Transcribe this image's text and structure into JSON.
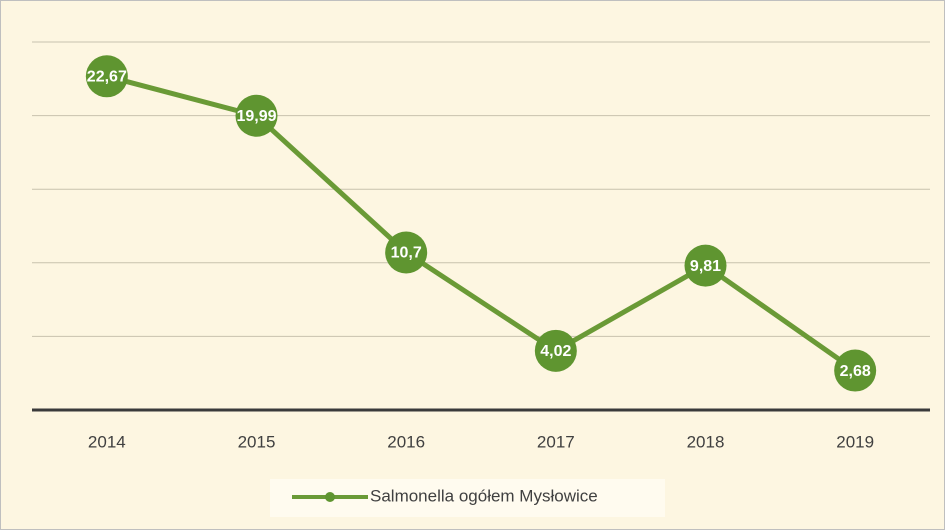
{
  "chart_data": {
    "type": "line",
    "categories": [
      "2014",
      "2015",
      "2016",
      "2017",
      "2018",
      "2019"
    ],
    "series": [
      {
        "name": "Salmonella ogółem Mysłowice",
        "color": "#6a9a36",
        "values": [
          22.67,
          19.99,
          10.7,
          4.02,
          9.81,
          2.68
        ],
        "value_labels": [
          "22,67",
          "19,99",
          "10,7",
          "4,02",
          "9,81",
          "2,68"
        ]
      }
    ],
    "ylim": [
      0,
      25
    ],
    "yticks": [
      0,
      5,
      10,
      15,
      20,
      25
    ],
    "grid": true,
    "legend": "bottom"
  }
}
